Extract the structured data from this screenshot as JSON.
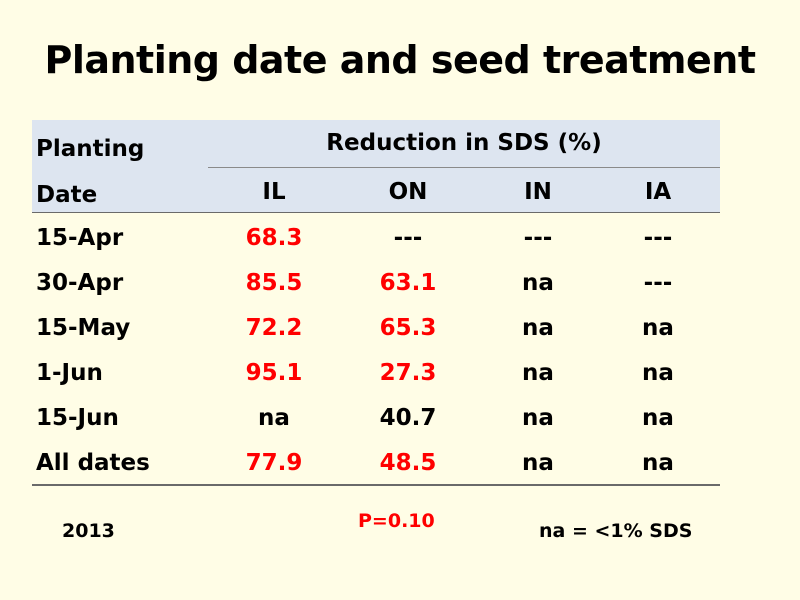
{
  "title": "Planting date and seed treatment",
  "table": {
    "header_left_line1": "Planting",
    "header_left_line2": "Date",
    "group_header": "Reduction in SDS (%)",
    "columns": [
      "IL",
      "ON",
      "IN",
      "IA"
    ],
    "rows": [
      {
        "date": "15-Apr",
        "values": [
          "68.3",
          "---",
          "---",
          "---"
        ],
        "red": [
          true,
          false,
          false,
          false
        ]
      },
      {
        "date": "30-Apr",
        "values": [
          "85.5",
          "63.1",
          "na",
          "---"
        ],
        "red": [
          true,
          true,
          false,
          false
        ]
      },
      {
        "date": "15-May",
        "values": [
          "72.2",
          "65.3",
          "na",
          "na"
        ],
        "red": [
          true,
          true,
          false,
          false
        ]
      },
      {
        "date": "1-Jun",
        "values": [
          "95.1",
          "27.3",
          "na",
          "na"
        ],
        "red": [
          true,
          true,
          false,
          false
        ]
      },
      {
        "date": "15-Jun",
        "values": [
          "na",
          "40.7",
          "na",
          "na"
        ],
        "red": [
          false,
          false,
          false,
          false
        ]
      },
      {
        "date": "All dates",
        "values": [
          "77.9",
          "48.5",
          "na",
          "na"
        ],
        "red": [
          true,
          true,
          false,
          false
        ]
      }
    ]
  },
  "footer": {
    "year": "2013",
    "pvalue": "P=0.10",
    "note": "na = <1% SDS"
  },
  "colors": {
    "background": "#fffde6",
    "header_fill": "#dde5f0",
    "highlight": "#ff0000"
  }
}
